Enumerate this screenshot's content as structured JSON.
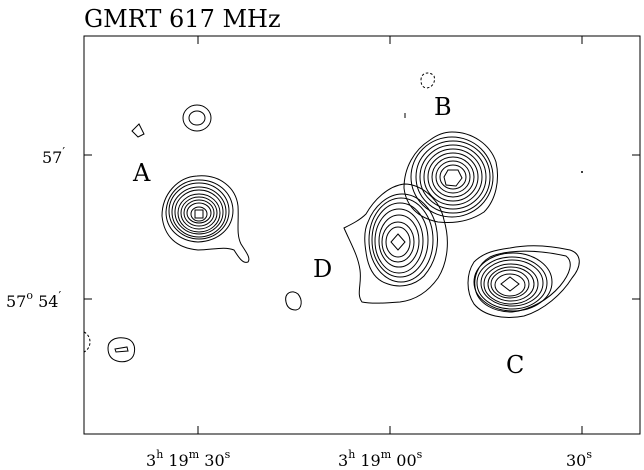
{
  "title": "GMRT 617 MHz",
  "dec_ticks": [
    {
      "deg": "",
      "min": "57"
    },
    {
      "deg": "57",
      "min": "54"
    }
  ],
  "ra_ticks": [
    {
      "h": "3",
      "m": "19",
      "s": "30"
    },
    {
      "h": "3",
      "m": "19",
      "s": "00"
    },
    {
      "h": "",
      "m": "",
      "s": "30"
    }
  ],
  "source_labels": {
    "A": "A",
    "B": "B",
    "C": "C",
    "D": "D"
  },
  "colors": {
    "ink": "#000000",
    "background": "#ffffff"
  }
}
